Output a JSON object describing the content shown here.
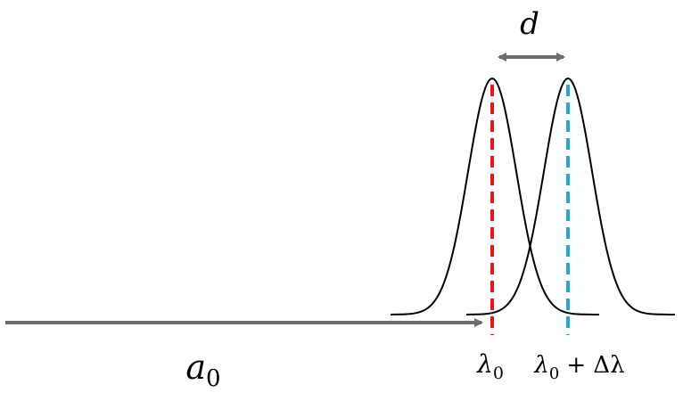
{
  "labels": {
    "distance": "d",
    "amplitude": {
      "base": "a",
      "sub": "0"
    },
    "wavelength": {
      "base": "λ",
      "sub": "0"
    },
    "shifted_wavelength": {
      "base": "λ",
      "sub": "0",
      "rest": "+ Δλ"
    }
  }
}
